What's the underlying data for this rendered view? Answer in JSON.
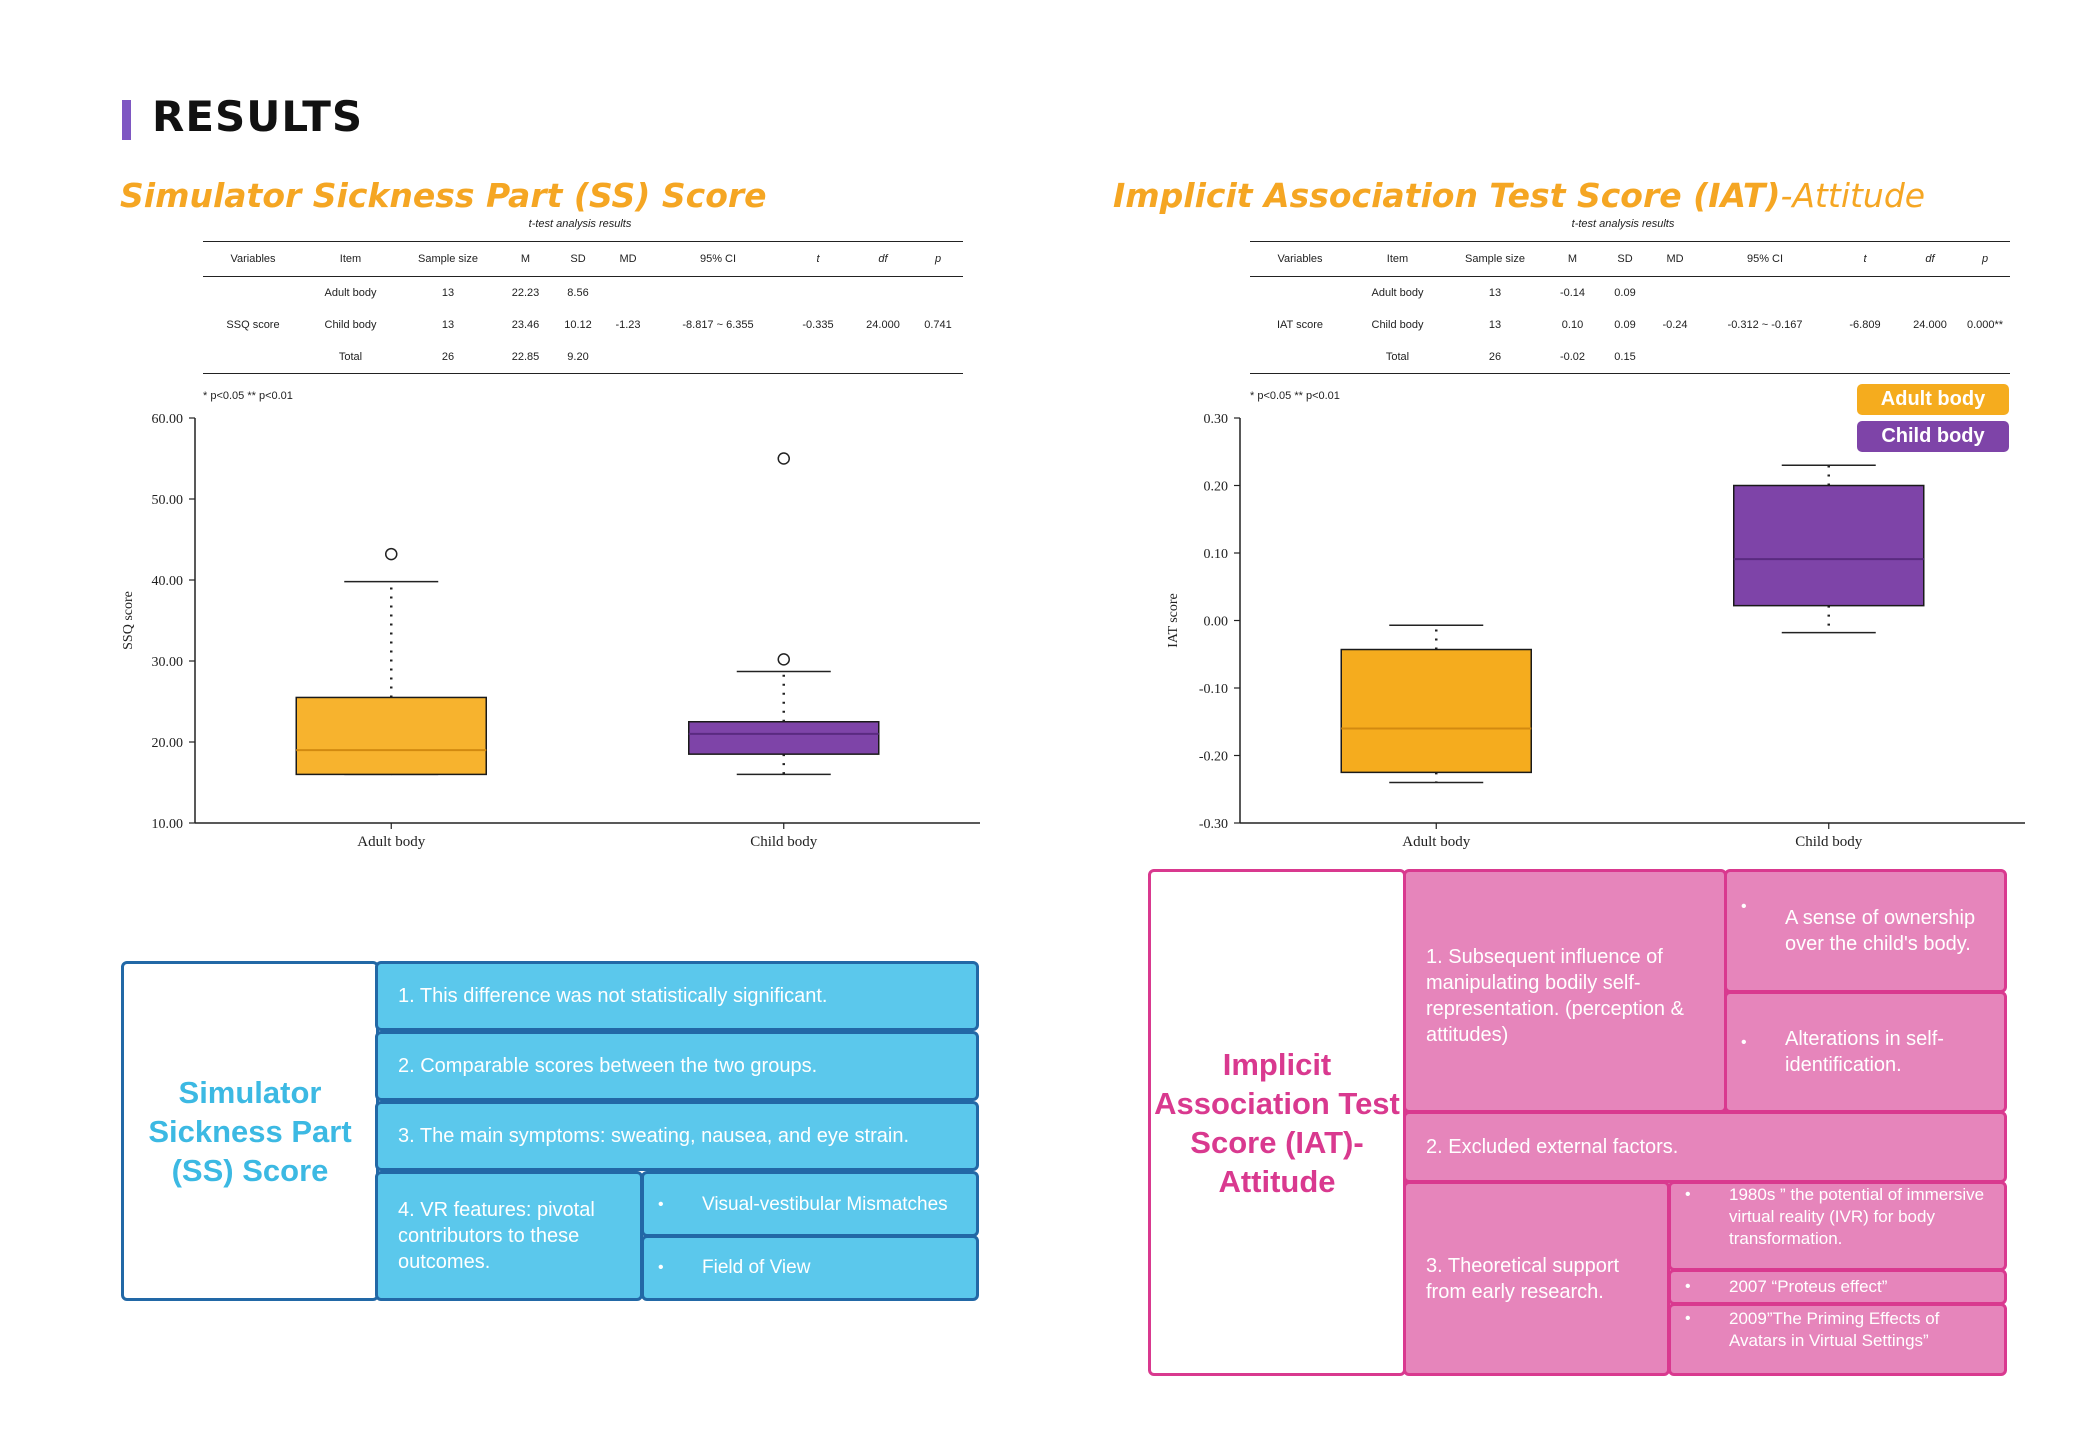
{
  "page": {
    "heading": "RESULTS"
  },
  "ss_section": {
    "title": "Simulator Sickness Part (SS) Score",
    "caption": "t-test analysis results",
    "columns": [
      "Variables",
      "Item",
      "Sample size",
      "M",
      "SD",
      "MD",
      "95% CI",
      "t",
      "df",
      "p"
    ],
    "rows": [
      [
        "",
        "Adult body",
        "13",
        "22.23",
        "8.56",
        "",
        "",
        "",
        "",
        ""
      ],
      [
        "SSQ score",
        "Child body",
        "13",
        "23.46",
        "10.12",
        "-1.23",
        "-8.817 ~ 6.355",
        "-0.335",
        "24.000",
        "0.741"
      ],
      [
        "",
        "Total",
        "26",
        "22.85",
        "9.20",
        "",
        "",
        "",
        "",
        ""
      ]
    ],
    "note": "* p<0.05 ** p<0.01"
  },
  "iat_section": {
    "title_bold": "Implicit Association Test Score (IAT)",
    "title_light": "-Attitude",
    "caption": "t-test analysis results",
    "columns": [
      "Variables",
      "Item",
      "Sample size",
      "M",
      "SD",
      "MD",
      "95% CI",
      "t",
      "df",
      "p"
    ],
    "rows": [
      [
        "",
        "Adult body",
        "13",
        "-0.14",
        "0.09",
        "",
        "",
        "",
        "",
        ""
      ],
      [
        "IAT score",
        "Child body",
        "13",
        "0.10",
        "0.09",
        "-0.24",
        "-0.312 ~ -0.167",
        "-6.809",
        "24.000",
        "0.000**"
      ],
      [
        "",
        "Total",
        "26",
        "-0.02",
        "0.15",
        "",
        "",
        "",
        "",
        ""
      ]
    ],
    "note": "* p<0.05 ** p<0.01"
  },
  "colors": {
    "adult": "#f5ac1e",
    "child": "#7e44a8",
    "accent": "#7e57c2",
    "orange_title": "#f5a623",
    "blue": "#5bc8ec",
    "pink": "#e685bb"
  },
  "chart_data": [
    {
      "type": "box",
      "ylabel": "SSQ score",
      "categories": [
        "Adult body",
        "Child body"
      ],
      "ylim": [
        10,
        60
      ],
      "yticks": [
        "10.00",
        "20.00",
        "30.00",
        "40.00",
        "50.00",
        "60.00"
      ],
      "series": [
        {
          "name": "Adult body",
          "whisker_low": 16,
          "q1": 16,
          "median": 19,
          "q3": 25.5,
          "whisker_high": 39.8,
          "outliers": [
            43.2
          ]
        },
        {
          "name": "Child body",
          "whisker_low": 16,
          "q1": 18.5,
          "median": 21,
          "q3": 22.5,
          "whisker_high": 28.7,
          "outliers": [
            30.2,
            55
          ]
        }
      ]
    },
    {
      "type": "box",
      "ylabel": "IAT score",
      "categories": [
        "Adult body",
        "Child body"
      ],
      "ylim": [
        -0.3,
        0.3
      ],
      "yticks": [
        "-0.30",
        "-0.20",
        "-0.10",
        "0.00",
        "0.10",
        "0.20",
        "0.30"
      ],
      "legend": [
        "Adult body",
        "Child body"
      ],
      "series": [
        {
          "name": "Adult body",
          "whisker_low": -0.24,
          "q1": -0.225,
          "median": -0.16,
          "q3": -0.043,
          "whisker_high": -0.007,
          "outliers": []
        },
        {
          "name": "Child body",
          "whisker_low": -0.018,
          "q1": 0.022,
          "median": 0.091,
          "q3": 0.2,
          "whisker_high": 0.23,
          "outliers": []
        }
      ]
    }
  ],
  "ss_concept": {
    "title": "Simulator Sickness Part (SS) Score",
    "items": [
      "1. This difference was not statistically significant.",
      "2. Comparable scores between the two groups.",
      "3. The main symptoms: sweating, nausea, and eye strain.",
      "4. VR features: pivotal contributors to these outcomes."
    ],
    "sub_items": [
      "Visual-vestibular Mismatches",
      "Field of View"
    ],
    "bullet": "•"
  },
  "iat_concept": {
    "title": "Implicit Association Test Score (IAT)-Attitude",
    "item1": "1. Subsequent influence of manipulating bodily self-representation. (perception & attitudes)",
    "item1_sub": [
      "A sense of ownership over the child's body.",
      "Alterations in self-identification."
    ],
    "item2": "2. Excluded external factors.",
    "item3": "3. Theoretical support from early research.",
    "item3_sub": [
      "1980s ” the potential of immersive virtual reality (IVR) for body transformation.",
      "2007 “Proteus effect”",
      "2009”The Priming Effects of Avatars in Virtual Settings”"
    ],
    "bullet": "•"
  }
}
